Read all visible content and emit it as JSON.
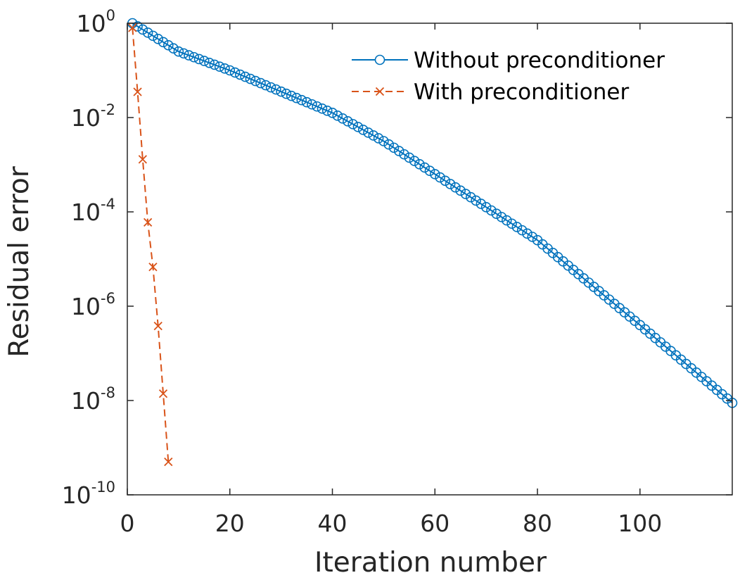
{
  "chart_data": {
    "type": "line",
    "title": "",
    "xlabel": "Iteration number",
    "ylabel": "Residual error",
    "xlim": [
      0,
      118
    ],
    "ylim": [
      1e-10,
      1
    ],
    "yscale": "log",
    "grid": false,
    "legend_position": "top-right",
    "x_ticks": [
      {
        "value": 0,
        "label": "0"
      },
      {
        "value": 20,
        "label": "20"
      },
      {
        "value": 40,
        "label": "40"
      },
      {
        "value": 60,
        "label": "60"
      },
      {
        "value": 80,
        "label": "80"
      },
      {
        "value": 100,
        "label": "100"
      }
    ],
    "y_ticks": [
      {
        "value": 1,
        "base": "10",
        "exp": "0"
      },
      {
        "value": 0.01,
        "base": "10",
        "exp": "-2"
      },
      {
        "value": 0.0001,
        "base": "10",
        "exp": "-4"
      },
      {
        "value": 1e-06,
        "base": "10",
        "exp": "-6"
      },
      {
        "value": 1e-08,
        "base": "10",
        "exp": "-8"
      },
      {
        "value": 1e-10,
        "base": "10",
        "exp": "-10"
      }
    ],
    "series": [
      {
        "name": "Without preconditioner",
        "color": "#0072BD",
        "line_style": "solid",
        "marker": "circle",
        "n_points": 118,
        "log10_anchors": [
          [
            1,
            0
          ],
          [
            10,
            -0.6
          ],
          [
            20,
            -1.0
          ],
          [
            40,
            -1.9
          ],
          [
            50,
            -2.5
          ],
          [
            60,
            -3.2
          ],
          [
            80,
            -4.6
          ],
          [
            100,
            -6.4
          ],
          [
            118,
            -8.05
          ]
        ]
      },
      {
        "name": "With preconditioner",
        "color": "#D95319",
        "line_style": "dashed",
        "marker": "x",
        "x": [
          1,
          2,
          3,
          4,
          5,
          6,
          7,
          8
        ],
        "y": [
          0.8,
          0.035,
          0.0013,
          6e-05,
          6.8e-06,
          3.8e-07,
          1.4e-08,
          5e-10
        ]
      }
    ]
  }
}
